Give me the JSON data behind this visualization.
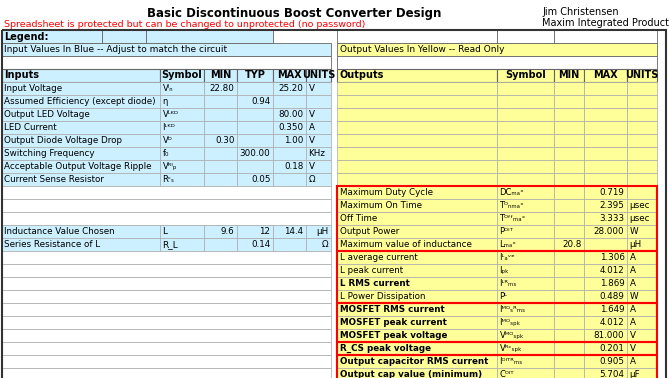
{
  "title": "Basic Discontinuous Boost Converter Design",
  "author": "Jim Christensen",
  "company": "Maxim Integrated Products",
  "subtitle_red": "Spreadsheet is protected but can be changed to unprotected (no password)",
  "legend_blue": "Input Values In Blue -- Adjust to match the circuit",
  "legend_yellow": "Output Values In Yellow -- Read Only",
  "input_header": [
    "Inputs",
    "Symbol",
    "MIN",
    "TYP",
    "MAX",
    "UNITS"
  ],
  "input_rows": [
    [
      "Input Voltage",
      "V_IN",
      "22.80",
      "",
      "25.20",
      "V"
    ],
    [
      "Assumed Efficiency (except diode)",
      "η",
      "",
      "0.94",
      "",
      ""
    ],
    [
      "Output LED Voltage",
      "V_LED",
      "",
      "",
      "80.00",
      "V"
    ],
    [
      "LED Current",
      "I_LED",
      "",
      "",
      "0.350",
      "A"
    ],
    [
      "Output Diode Voltage Drop",
      "V_D",
      "0.30",
      "",
      "1.00",
      "V"
    ],
    [
      "Switching Frequency",
      "f_0",
      "",
      "300.00",
      "",
      "KHz"
    ],
    [
      "Acceptable Output Voltage Ripple",
      "V_Orip",
      "",
      "",
      "0.18",
      "V"
    ],
    [
      "Current Sense Resistor",
      "R_CS",
      "",
      "0.05",
      "",
      "Ω"
    ]
  ],
  "output_header": [
    "Outputs",
    "Symbol",
    "MIN",
    "MAX",
    "UNITS"
  ],
  "output_rows_mid": [
    [
      "Maximum Duty Cycle",
      "DC_MAX",
      "",
      "0.719",
      ""
    ],
    [
      "Maximum On Time",
      "T_ONMAX",
      "",
      "2.395",
      "μsec"
    ],
    [
      "Off Time",
      "T_OFFMAX",
      "",
      "3.333",
      "μsec"
    ],
    [
      "Output Power",
      "P_OUT",
      "",
      "28.000",
      "W"
    ],
    [
      "Maximum value of inductance",
      "L_MAX",
      "20.8",
      "",
      "μH"
    ]
  ],
  "inductor_header": [
    "Inductance Value Chosen",
    "L",
    "9.6",
    "12",
    "14.4",
    "μH"
  ],
  "inductor_row2": [
    "Series Resistance of L",
    "R_L",
    "",
    "0.14",
    "",
    "Ω"
  ],
  "output_rows_bot": [
    [
      "L average current",
      "I_Lave",
      "",
      "1.306",
      "A"
    ],
    [
      "L peak current",
      "I_pk",
      "",
      "4.012",
      "A"
    ],
    [
      "L RMS current",
      "I_Lrms",
      "",
      "1.869",
      "A"
    ],
    [
      "L Power Dissipation",
      "P_L",
      "",
      "0.489",
      "W"
    ],
    [
      "MOSFET RMS current",
      "I_MOSrms",
      "",
      "1.649",
      "A"
    ],
    [
      "MOSFET peak current",
      "I_MOSpk",
      "",
      "4.012",
      "A"
    ],
    [
      "MOSFET peak voltage",
      "V_MOSpk",
      "",
      "81.000",
      "V"
    ],
    [
      "R_CS peak voltage",
      "V_RCSpk",
      "",
      "0.201",
      "V"
    ],
    [
      "Output capacitor RMS current",
      "I_OUTrms",
      "",
      "0.905",
      "A"
    ],
    [
      "Output cap value (minimum)",
      "C_OUT",
      "",
      "5.704",
      "μF"
    ]
  ],
  "symbol_display": {
    "V_IN": "Vᴵₙ",
    "η": "η",
    "V_LED": "Vᴸᴷᴰ",
    "I_LED": "Iᴸᴷᴰ",
    "V_D": "Vᴰ",
    "f_0": "f₀",
    "V_Orip": "Vᴿᴵₚ",
    "R_CS": "Rᶜₛ",
    "DC_MAX": "DCₘₐˣ",
    "T_ONMAX": "Tᴼₙₘₐˣ",
    "T_OFFMAX": "Tᴼᶠᶠₘₐˣ",
    "P_OUT": "Pᴼᴵᵀ",
    "L_MAX": "Lₘₐˣ",
    "L": "L",
    "R_L": "Rᴸ",
    "I_Lave": "Iᴸₐᵛᵉ",
    "I_pk": "Iₚₖ",
    "I_Lrms": "Iᴸᴿₘₛ",
    "P_L": "Pᴸ",
    "I_MOSrms": "Iᴹᴼₛᴿₘₛ",
    "I_MOSpk": "Iᴹᴼₛₚₖ",
    "V_MOSpk": "Vᴹᴼₛₚₖ",
    "V_RCSpk": "Vᴿᶜₛₚₖ",
    "I_OUTrms": "Iᴼᴵᵀᴿₘₛ",
    "C_OUT": "Cᴼᴵᵀ"
  },
  "colors": {
    "bg": "#ffffff",
    "light_blue": "#ccf0ff",
    "light_yellow": "#ffff99",
    "red_border": "#ff0000",
    "red_text": "#ff0000",
    "white": "#ffffff",
    "border_dark": "#666666",
    "border_light": "#aaaaaa"
  }
}
